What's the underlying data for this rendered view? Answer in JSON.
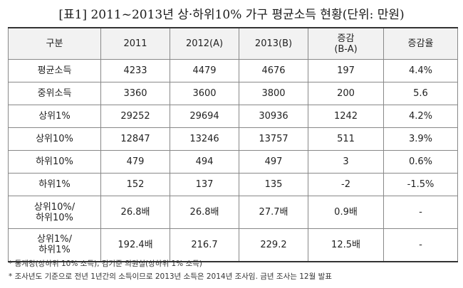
{
  "title": "[표1] 2011~2013년 상·하위10% 가구 평균소득 현황(단위: 만원)",
  "table": {
    "headers": [
      "구분",
      "2011",
      "2012(A)",
      "2013(B)",
      "증감\n(B-A)",
      "증감율"
    ],
    "rows": [
      [
        "평균소득",
        "4233",
        "4479",
        "4676",
        "197",
        "4.4%"
      ],
      [
        "중위소득",
        "3360",
        "3600",
        "3800",
        "200",
        "5.6"
      ],
      [
        "상위1%",
        "29252",
        "29694",
        "30936",
        "1242",
        "4.2%"
      ],
      [
        "상위10%",
        "12847",
        "13246",
        "13757",
        "511",
        "3.9%"
      ],
      [
        "하위10%",
        "479",
        "494",
        "497",
        "3",
        "0.6%"
      ],
      [
        "하위1%",
        "152",
        "137",
        "135",
        "-2",
        "-1.5%"
      ],
      [
        "상위10%/\n하위10%",
        "26.8배",
        "26.8배",
        "27.7배",
        "0.9배",
        "-"
      ],
      [
        "상위1%/\n하위1%",
        "192.4배",
        "216.7",
        "229.2",
        "12.5배",
        "-"
      ]
    ]
  },
  "notes": [
    "* 통계청(상하위 10% 소득), 김기준 의원실(상하위 1% 소득)",
    "* 조사년도 기준으로 전년 1년간의 소득이므로 2013년 소득은 2014년 조사임. 금년 조사는 12월 발표"
  ]
}
